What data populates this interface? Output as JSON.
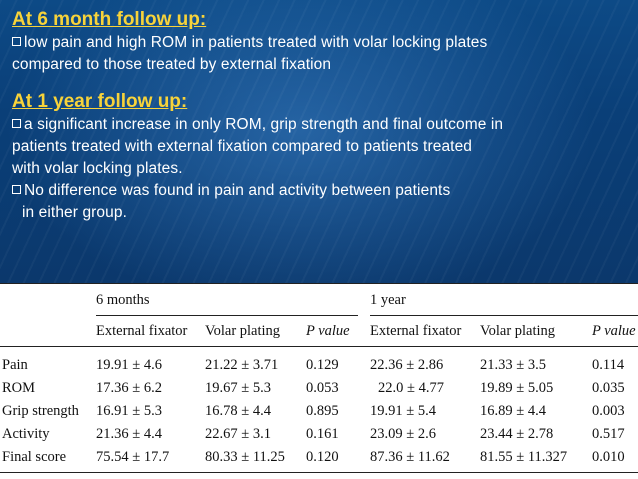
{
  "slide": {
    "heading1": "At 6 month follow up:",
    "para1_line1": "low pain and high ROM in patients treated with volar locking plates",
    "para1_line2": "compared to those treated by external fixation",
    "heading2": "At 1 year follow up:",
    "para2_line1": "a significant increase in only ROM, grip strength and final outcome in",
    "para2_line2": "patients treated with external fixation compared to patients treated",
    "para2_line3": "with volar locking plates.",
    "para3_line1": "No difference was found in pain and activity between patients",
    "para3_line2": "in either group."
  },
  "table": {
    "group1": "6 months",
    "group2": "1 year",
    "columns": [
      "External fixator",
      "Volar plating",
      "P value",
      "External fixator",
      "Volar plating",
      "P value"
    ],
    "rows": [
      {
        "label": "Pain",
        "cells": [
          "19.91 ± 4.6",
          "21.22 ± 3.71",
          "0.129",
          "22.36 ± 2.86",
          "21.33 ± 3.5",
          "0.114"
        ]
      },
      {
        "label": "ROM",
        "cells": [
          "17.36 ± 6.2",
          "19.67 ± 5.3",
          "0.053",
          "22.0 ± 4.77",
          "19.89 ± 5.05",
          "0.035"
        ]
      },
      {
        "label": "Grip strength",
        "cells": [
          "16.91 ± 5.3",
          "16.78 ± 4.4",
          "0.895",
          "19.91 ± 5.4",
          "16.89 ± 4.4",
          "0.003"
        ]
      },
      {
        "label": "Activity",
        "cells": [
          "21.36 ± 4.4",
          "22.67 ± 3.1",
          "0.161",
          "23.09 ± 2.6",
          "23.44 ± 2.78",
          "0.517"
        ]
      },
      {
        "label": "Final score",
        "cells": [
          "75.54 ± 17.7",
          "80.33 ± 11.25",
          "0.120",
          "87.36 ± 11.62",
          "81.55 ± 11.327",
          "0.010"
        ]
      }
    ]
  },
  "colors": {
    "heading": "#f7d33a",
    "background": "#0b3a6e",
    "text": "#ffffff"
  }
}
